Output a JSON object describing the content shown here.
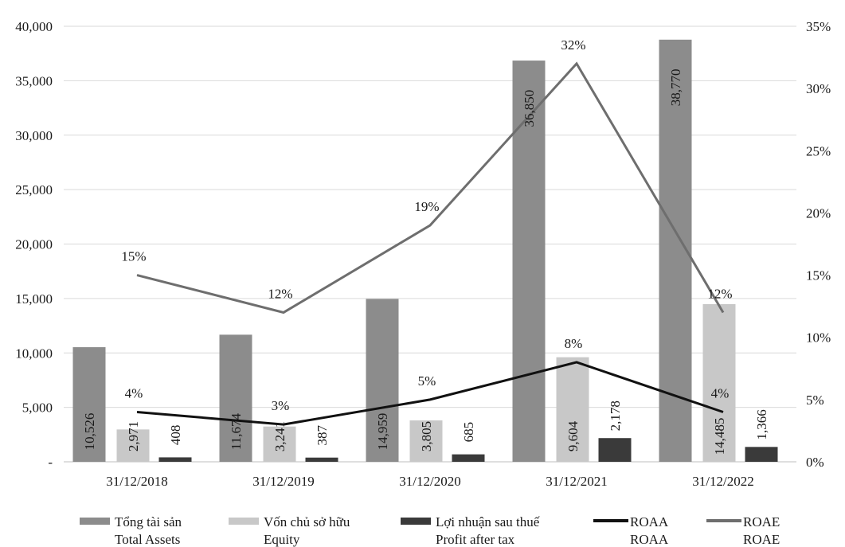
{
  "chart_data": {
    "type": "bar",
    "categories": [
      "31/12/2018",
      "31/12/2019",
      "31/12/2020",
      "31/12/2021",
      "31/12/2022"
    ],
    "y_left": {
      "ylim": [
        0,
        40000
      ],
      "ticks": [
        0,
        5000,
        10000,
        15000,
        20000,
        25000,
        30000,
        35000,
        40000
      ],
      "tick_labels": [
        "-",
        "5,000",
        "10,000",
        "15,000",
        "20,000",
        "25,000",
        "30,000",
        "35,000",
        "40,000"
      ]
    },
    "y_right": {
      "ylim": [
        0,
        0.35
      ],
      "ticks": [
        0,
        0.05,
        0.1,
        0.15,
        0.2,
        0.25,
        0.3,
        0.35
      ],
      "tick_labels": [
        "0%",
        "5%",
        "10%",
        "15%",
        "20%",
        "25%",
        "30%",
        "35%"
      ]
    },
    "grid": true,
    "legend_position": "bottom",
    "series": [
      {
        "name": "Tổng tài sản",
        "name_en": "Total Assets",
        "kind": "bar",
        "axis": "left",
        "color": "#8c8c8c",
        "values": [
          10526,
          11674,
          14959,
          36850,
          38770
        ],
        "labels": [
          "10,526",
          "11,674",
          "14,959",
          "36,850",
          "38,770"
        ]
      },
      {
        "name": "Vốn chủ sở hữu",
        "name_en": "Equity",
        "kind": "bar",
        "axis": "left",
        "color": "#c8c8c8",
        "values": [
          2971,
          3241,
          3805,
          9604,
          14485
        ],
        "labels": [
          "2,971",
          "3,241",
          "3,805",
          "9,604",
          "14,485"
        ]
      },
      {
        "name": "Lợi nhuận sau thuế",
        "name_en": "Profit after tax",
        "kind": "bar",
        "axis": "left",
        "color": "#3a3a3a",
        "values": [
          408,
          387,
          685,
          2178,
          1366
        ],
        "labels": [
          "408",
          "387",
          "685",
          "2,178",
          "1,366"
        ]
      },
      {
        "name": "ROAA",
        "name_en": "ROAA",
        "kind": "line",
        "axis": "right",
        "color": "#111111",
        "values": [
          0.04,
          0.03,
          0.05,
          0.08,
          0.04
        ],
        "labels": [
          "4%",
          "3%",
          "5%",
          "8%",
          "4%"
        ]
      },
      {
        "name": "ROAE",
        "name_en": "ROAE",
        "kind": "line",
        "axis": "right",
        "color": "#6e6e6e",
        "values": [
          0.15,
          0.12,
          0.19,
          0.32,
          0.12
        ],
        "labels": [
          "15%",
          "12%",
          "19%",
          "32%",
          "12%"
        ]
      }
    ]
  }
}
